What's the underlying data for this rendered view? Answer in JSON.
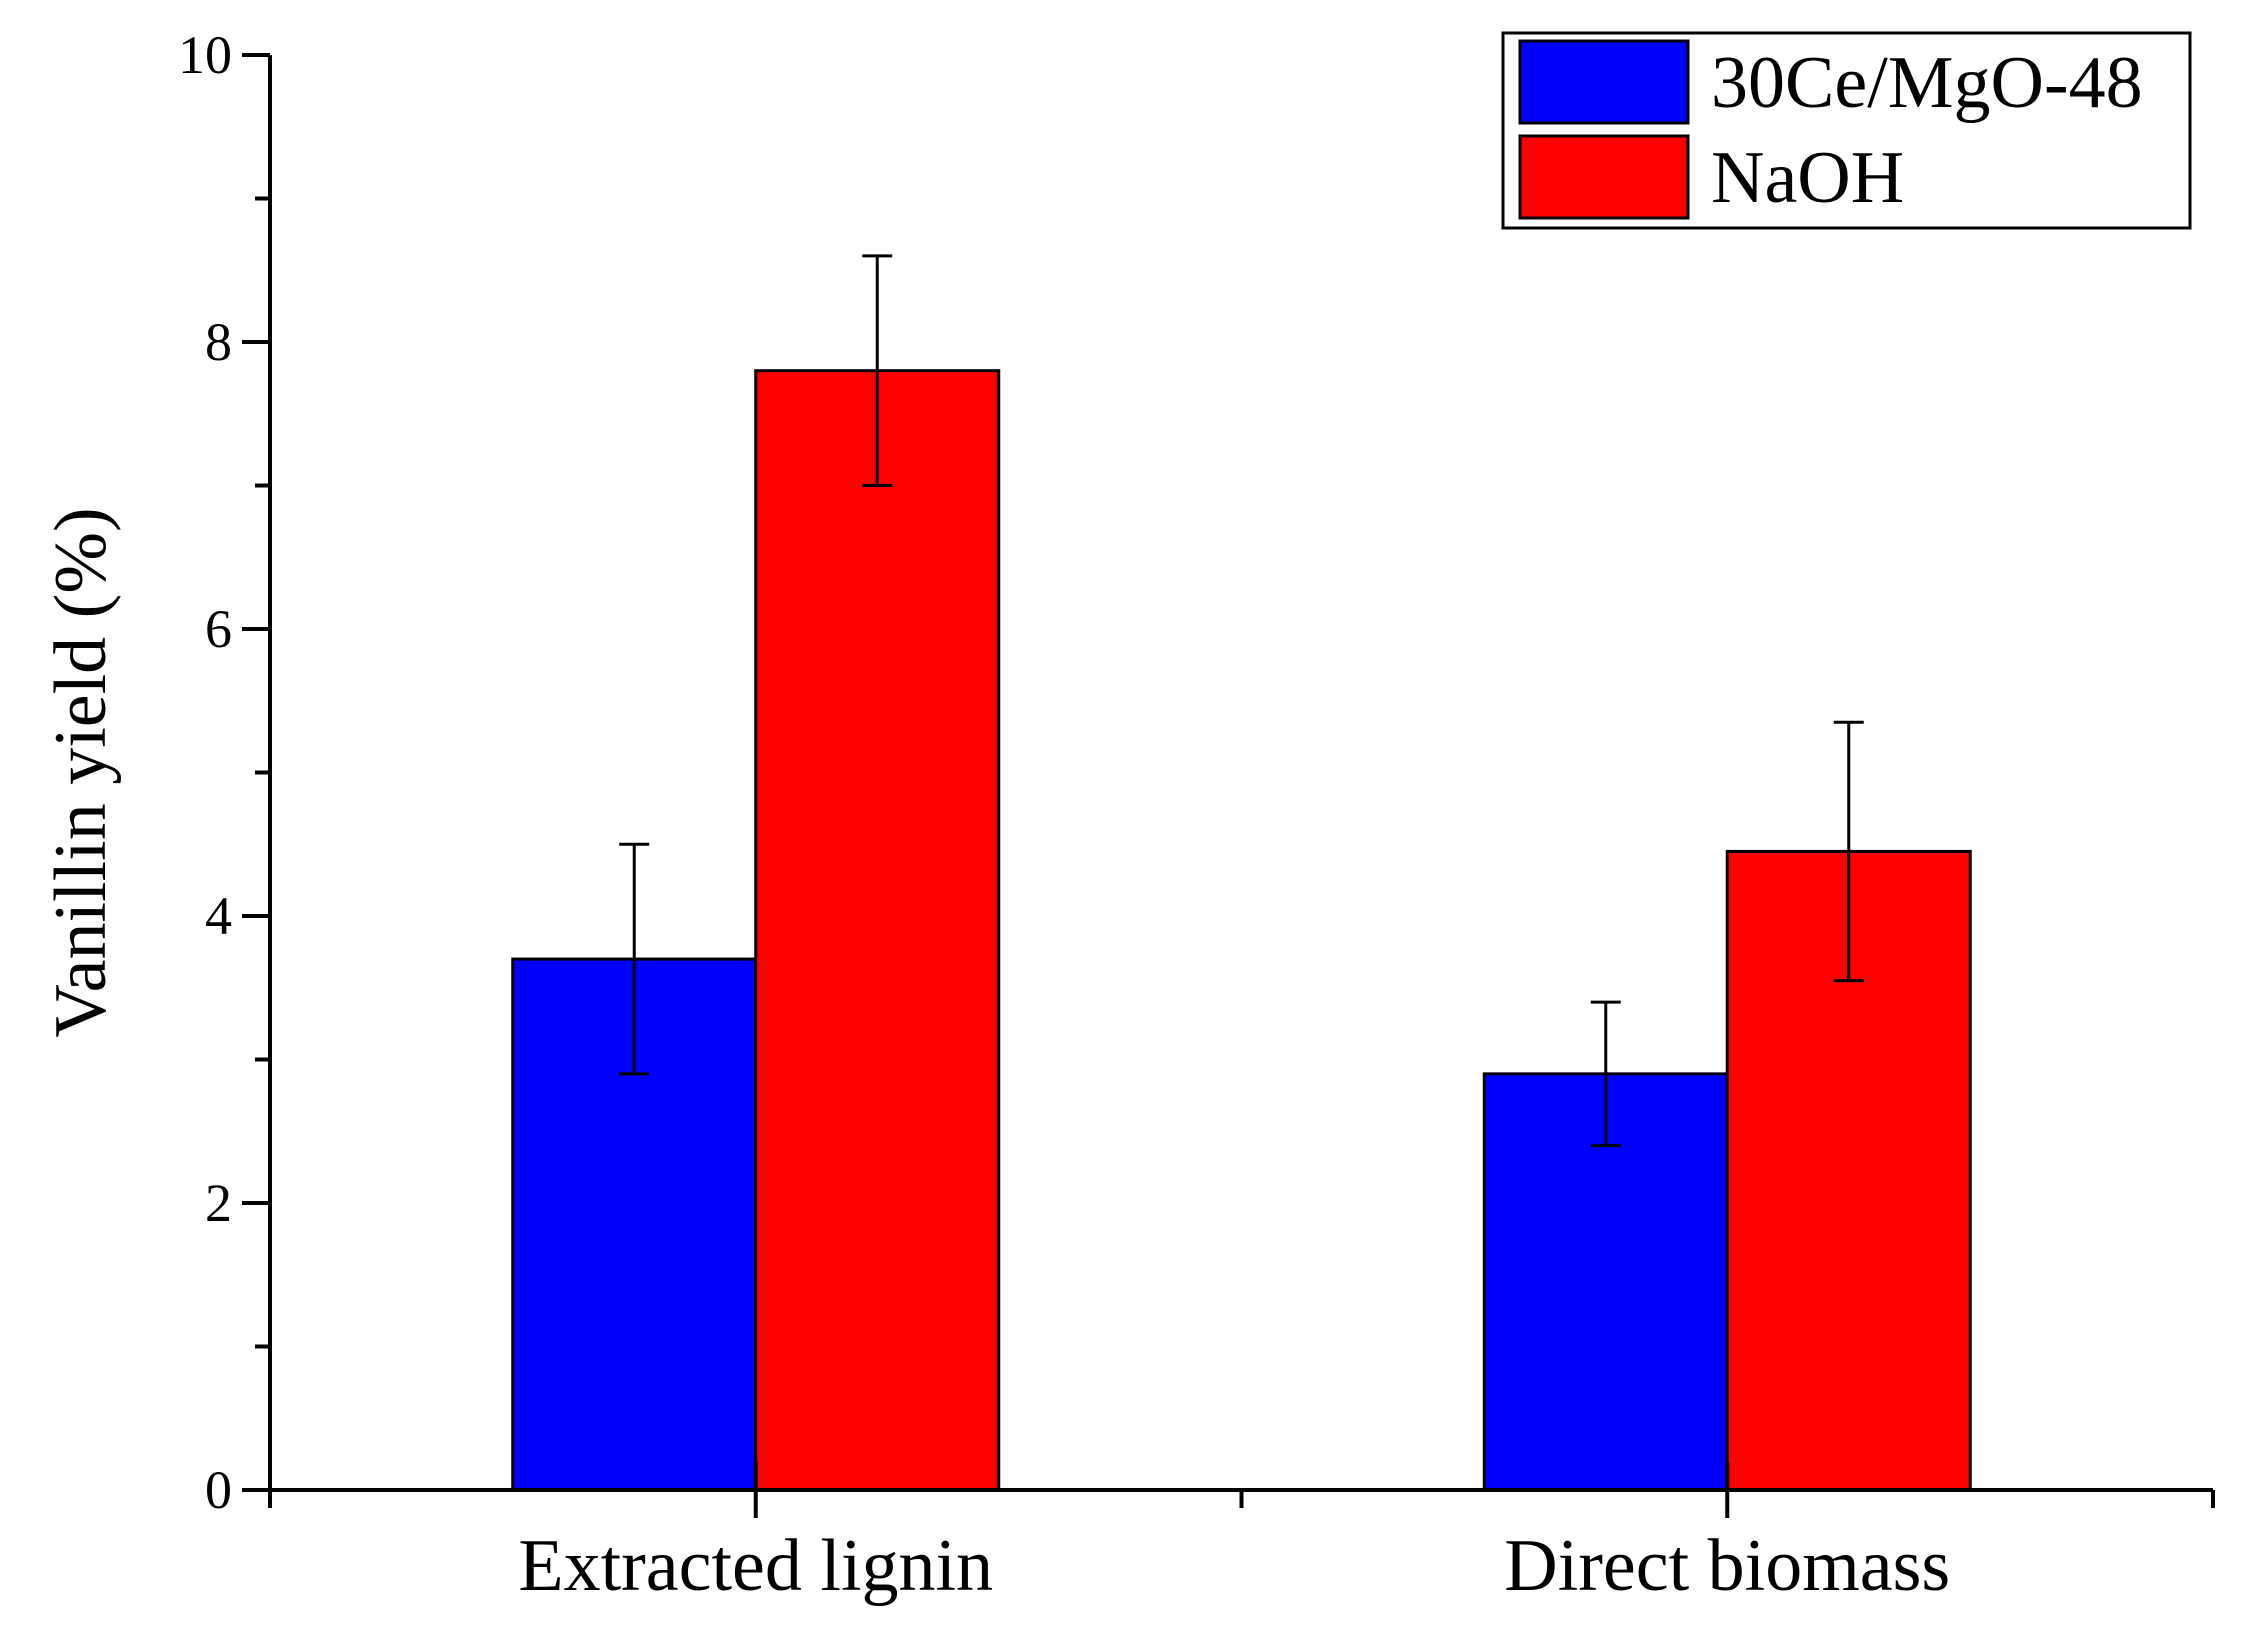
{
  "chart_data": {
    "type": "bar",
    "title": "",
    "xlabel": "",
    "ylabel": "Vanillin yield (%)",
    "categories": [
      "Extracted lignin",
      "Direct biomass"
    ],
    "series": [
      {
        "name": "30Ce/MgO-48",
        "color": "#0000ff",
        "values": [
          3.7,
          2.9
        ],
        "errors": [
          0.8,
          0.5
        ]
      },
      {
        "name": "NaOH",
        "color": "#ff0000",
        "values": [
          7.8,
          4.45
        ],
        "errors": [
          0.8,
          0.9
        ]
      }
    ],
    "ylim": [
      0,
      10
    ],
    "yticks": [
      0,
      2,
      4,
      6,
      8,
      10
    ],
    "ytick_labels": [
      "0",
      "2",
      "4",
      "6",
      "8",
      "10"
    ],
    "grid": false,
    "legend_position": "top-right",
    "error_bars": true
  }
}
